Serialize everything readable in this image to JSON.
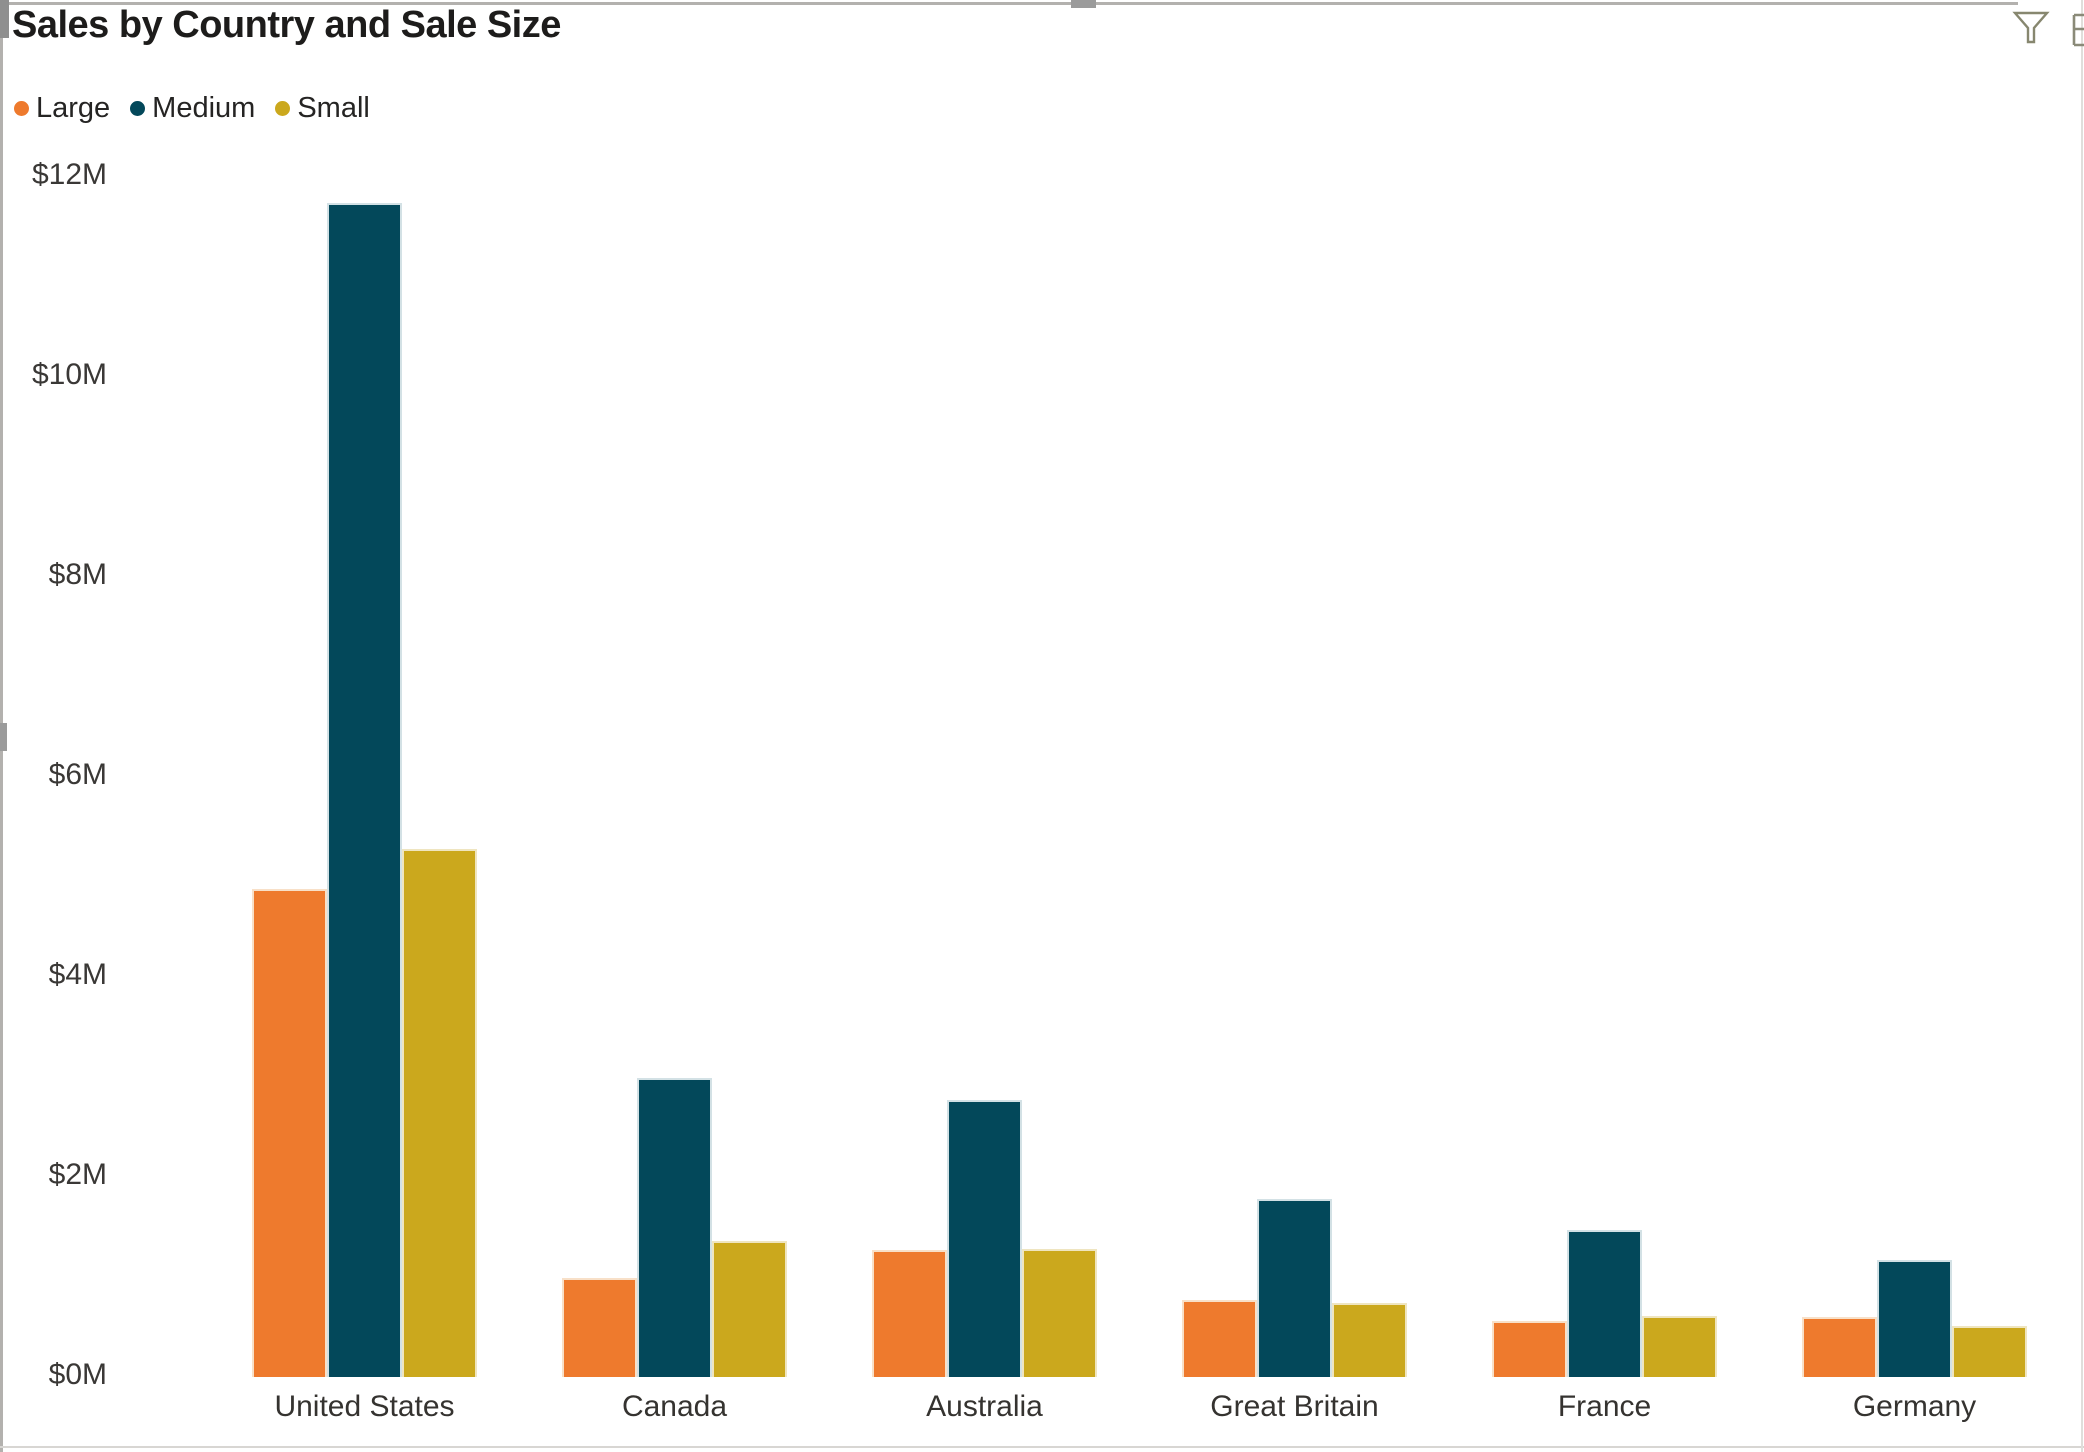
{
  "title": "Sales by Country and Sale Size",
  "toolbar": {
    "filter_icon": "funnel",
    "more_icon": "partially-visible-right-edge"
  },
  "legend": {
    "position": "top",
    "items": [
      {
        "label": "Large",
        "color": "#EE7A2D"
      },
      {
        "label": "Medium",
        "color": "#03485A"
      },
      {
        "label": "Small",
        "color": "#CBA81D"
      }
    ]
  },
  "chart_data": {
    "type": "bar",
    "title": "Sales by Country and Sale Size",
    "categories": [
      "United States",
      "Canada",
      "Australia",
      "Great Britain",
      "France",
      "Germany"
    ],
    "series": [
      {
        "name": "Large",
        "color": "#EE7A2D",
        "edge": "#F8E0C8",
        "values": [
          4.88,
          0.99,
          1.27,
          0.77,
          0.56,
          0.6
        ]
      },
      {
        "name": "Medium",
        "color": "#03485A",
        "edge": "#D3E1E5",
        "values": [
          11.74,
          2.99,
          2.77,
          1.78,
          1.47,
          1.17
        ]
      },
      {
        "name": "Small",
        "color": "#CBA81D",
        "edge": "#EFE5C0",
        "values": [
          5.28,
          1.36,
          1.28,
          0.74,
          0.61,
          0.51
        ]
      }
    ],
    "unit": "$M (USD millions)",
    "xlabel": "",
    "ylabel": "",
    "yticks": [
      "$0M",
      "$2M",
      "$4M",
      "$6M",
      "$8M",
      "$10M",
      "$12M"
    ],
    "ylim": [
      0,
      12
    ],
    "grid": false,
    "legend_position": "top"
  }
}
